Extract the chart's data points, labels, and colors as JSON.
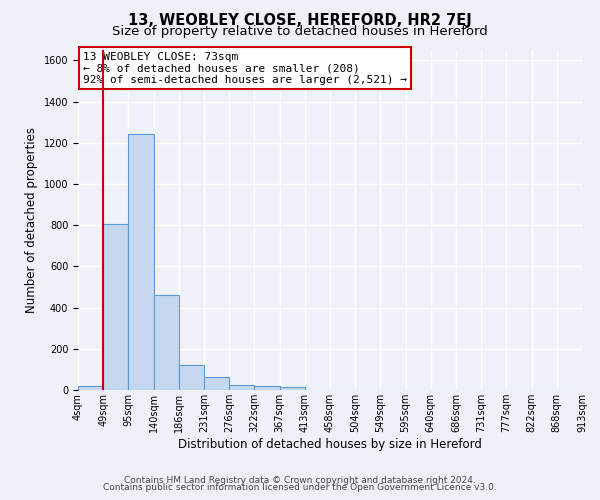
{
  "title": "13, WEOBLEY CLOSE, HEREFORD, HR2 7EJ",
  "subtitle": "Size of property relative to detached houses in Hereford",
  "xlabel": "Distribution of detached houses by size in Hereford",
  "ylabel": "Number of detached properties",
  "bar_values": [
    20,
    805,
    1240,
    460,
    120,
    65,
    25,
    20,
    15,
    0,
    0,
    0,
    0,
    0,
    0,
    0,
    0,
    0,
    0,
    0
  ],
  "bin_labels": [
    "4sqm",
    "49sqm",
    "95sqm",
    "140sqm",
    "186sqm",
    "231sqm",
    "276sqm",
    "322sqm",
    "367sqm",
    "413sqm",
    "458sqm",
    "504sqm",
    "549sqm",
    "595sqm",
    "640sqm",
    "686sqm",
    "731sqm",
    "777sqm",
    "822sqm",
    "868sqm",
    "913sqm"
  ],
  "bar_color": "#c5d8f0",
  "bar_edge_color": "#5b9bd5",
  "vline_color": "#cc0000",
  "vline_x_index": 1,
  "annotation_text": "13 WEOBLEY CLOSE: 73sqm\n← 8% of detached houses are smaller (208)\n92% of semi-detached houses are larger (2,521) →",
  "annotation_box_facecolor": "#ffffff",
  "annotation_box_edgecolor": "#cc0000",
  "ylim": [
    0,
    1650
  ],
  "yticks": [
    0,
    200,
    400,
    600,
    800,
    1000,
    1200,
    1400,
    1600
  ],
  "footer_line1": "Contains HM Land Registry data © Crown copyright and database right 2024.",
  "footer_line2": "Contains public sector information licensed under the Open Government Licence v3.0.",
  "bg_color": "#eef2f8",
  "plot_bg_color": "#eef2f8",
  "grid_color": "#ffffff",
  "title_fontsize": 10.5,
  "subtitle_fontsize": 9.5,
  "axis_label_fontsize": 8.5,
  "tick_fontsize": 7,
  "annotation_fontsize": 8,
  "footer_fontsize": 6.5
}
